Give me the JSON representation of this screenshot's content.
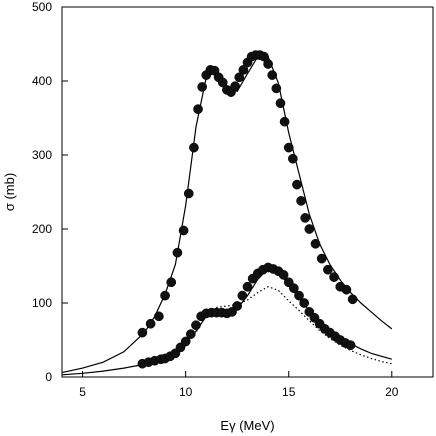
{
  "chart_data": {
    "type": "scatter",
    "title": "",
    "xlabel": "Eγ (MeV)",
    "ylabel": "σ (mb)",
    "xlim": [
      4,
      22
    ],
    "ylim": [
      0,
      500
    ],
    "x_ticks": [
      5,
      10,
      15,
      20
    ],
    "y_ticks": [
      0,
      100,
      200,
      300,
      400,
      500
    ],
    "grid": false,
    "series": [
      {
        "style": "points",
        "x": [
          7.9,
          8.3,
          8.7,
          9.0,
          9.3,
          9.6,
          9.9,
          10.15,
          10.4,
          10.6,
          10.8,
          11.0,
          11.2,
          11.4,
          11.6,
          11.8,
          12.0,
          12.2,
          12.4,
          12.6,
          12.8,
          13.0,
          13.2,
          13.4,
          13.6,
          13.8,
          14.0,
          14.2,
          14.4,
          14.6,
          14.8,
          15.0,
          15.2,
          15.4,
          15.6,
          15.8,
          16.0,
          16.3,
          16.6,
          16.9,
          17.2,
          17.5,
          17.8,
          18.1
        ],
        "y": [
          60,
          72,
          82,
          110,
          128,
          168,
          198,
          248,
          310,
          362,
          392,
          408,
          415,
          414,
          405,
          398,
          388,
          385,
          393,
          405,
          415,
          425,
          433,
          435,
          435,
          433,
          423,
          408,
          390,
          370,
          345,
          310,
          295,
          260,
          238,
          215,
          200,
          180,
          160,
          145,
          135,
          122,
          118,
          105
        ]
      },
      {
        "style": "points",
        "x": [
          7.9,
          8.2,
          8.5,
          8.8,
          9.0,
          9.25,
          9.5,
          9.75,
          10.0,
          10.25,
          10.5,
          10.75,
          11.0,
          11.25,
          11.5,
          11.75,
          12.0,
          12.25,
          12.5,
          12.75,
          13.0,
          13.25,
          13.5,
          13.75,
          14.0,
          14.25,
          14.5,
          14.75,
          15.0,
          15.25,
          15.5,
          15.75,
          16.0,
          16.25,
          16.5,
          16.75,
          17.0,
          17.25,
          17.5,
          17.75,
          18.0
        ],
        "y": [
          18,
          20,
          22,
          24,
          25,
          28,
          32,
          40,
          48,
          58,
          70,
          82,
          86,
          87,
          87,
          87,
          86,
          88,
          96,
          110,
          122,
          133,
          140,
          145,
          148,
          146,
          143,
          138,
          128,
          120,
          110,
          100,
          88,
          80,
          72,
          65,
          60,
          55,
          50,
          46,
          43
        ]
      },
      {
        "style": "solid-line",
        "x": [
          4,
          5,
          6,
          7,
          8,
          8.5,
          9,
          9.5,
          10,
          10.5,
          11,
          11.5,
          12,
          12.5,
          13,
          13.5,
          14,
          14.5,
          15,
          15.5,
          16,
          16.5,
          17,
          17.5,
          18,
          18.5,
          19,
          19.5,
          20
        ],
        "y": [
          6,
          12,
          20,
          34,
          60,
          82,
          112,
          152,
          232,
          338,
          405,
          413,
          392,
          386,
          410,
          433,
          433,
          397,
          330,
          275,
          220,
          180,
          152,
          131,
          114,
          100,
          88,
          76,
          65
        ]
      },
      {
        "style": "solid-line",
        "x": [
          4,
          5,
          6,
          7,
          8,
          9,
          9.5,
          10,
          10.5,
          11,
          11.5,
          12,
          12.5,
          13,
          13.5,
          14,
          14.5,
          15,
          15.5,
          16,
          16.5,
          17,
          17.5,
          18,
          18.5,
          19,
          19.5,
          20
        ],
        "y": [
          3,
          5,
          8,
          12,
          17,
          26,
          34,
          45,
          62,
          82,
          88,
          88,
          92,
          110,
          132,
          147,
          142,
          125,
          106,
          90,
          76,
          63,
          53,
          45,
          38,
          32,
          28,
          24
        ]
      },
      {
        "style": "dotted-line",
        "x": [
          8,
          9,
          10,
          10.5,
          11,
          11.5,
          12,
          12.5,
          13,
          13.5,
          14,
          14.5,
          15,
          15.5,
          16,
          16.5,
          17,
          17.5,
          18,
          18.5,
          19,
          19.5,
          20
        ],
        "y": [
          16,
          24,
          42,
          60,
          85,
          94,
          96,
          98,
          104,
          114,
          122,
          117,
          103,
          90,
          76,
          63,
          52,
          43,
          36,
          30,
          25,
          21,
          18
        ]
      }
    ]
  }
}
